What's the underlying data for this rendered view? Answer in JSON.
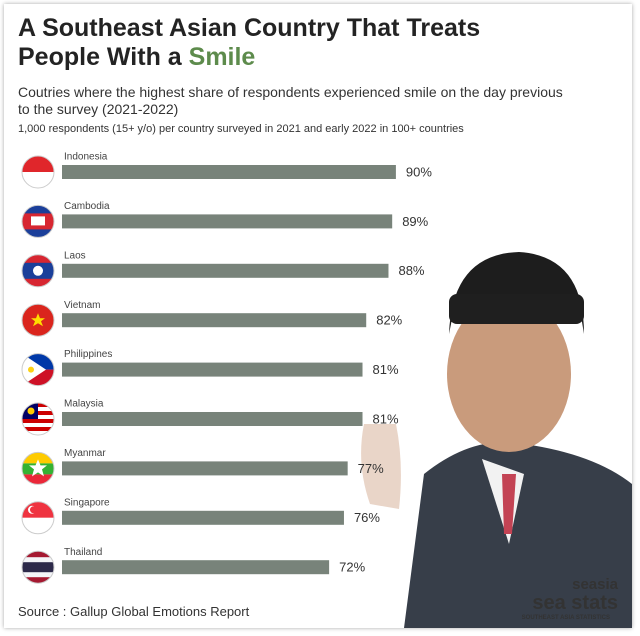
{
  "chart_data": {
    "type": "bar",
    "title_line1": "A Southeast Asian Country That Treats",
    "title_line2": "People With a",
    "title_highlight": "Smile",
    "subtitle": "Coutries where the highest share of respondents experienced smile on the day previous to the survey (2021-2022)",
    "note": "1,000 respondents (15+ y/o) per country surveyed in 2021 and early 2022 in 100+ countries",
    "categories": [
      "Indonesia",
      "Cambodia",
      "Laos",
      "Vietnam",
      "Philippines",
      "Malaysia",
      "Myanmar",
      "Singapore",
      "Thailand"
    ],
    "values": [
      90,
      89,
      88,
      82,
      81,
      81,
      77,
      76,
      72
    ],
    "value_labels": [
      "90%",
      "89%",
      "88%",
      "82%",
      "81%",
      "81%",
      "77%",
      "76%",
      "72%"
    ],
    "color": "#78837a",
    "source": "Source : Gallup Global Emotions Report",
    "logo_top": "seasia",
    "logo_main": "sea stats",
    "logo_sub": "SOUTHEAST ASIA STATISTICS"
  }
}
